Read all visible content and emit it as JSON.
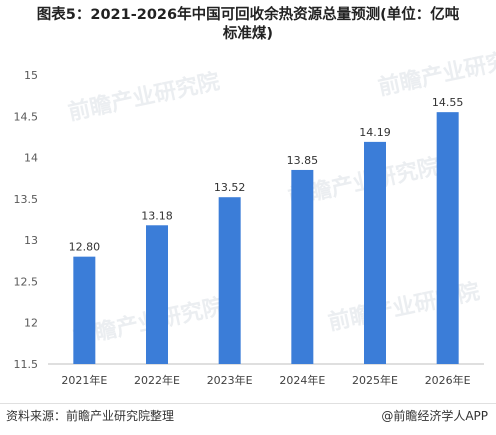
{
  "title_line1": "图表5：2021-2026年中国可回收余热资源总量预测(单位：亿吨",
  "title_line2": "标准煤)",
  "source": "资料来源：前瞻产业研究院整理",
  "brand": "@前瞻经济学人APP",
  "watermark": "前瞻产业研究院",
  "colors": {
    "bar": "#3b7dd8",
    "axis": "#bfbfbf"
  },
  "chart_data": {
    "type": "bar",
    "title": "2021-2026年中国可回收余热资源总量预测(单位：亿吨标准煤)",
    "categories": [
      "2021年E",
      "2022年E",
      "2023年E",
      "2024年E",
      "2025年E",
      "2026年E"
    ],
    "values": [
      12.8,
      13.18,
      13.52,
      13.85,
      14.19,
      14.55
    ],
    "value_labels": [
      "12.80",
      "13.18",
      "13.52",
      "13.85",
      "14.19",
      "14.55"
    ],
    "yticks": [
      "11.5",
      "12",
      "12.5",
      "13",
      "13.5",
      "14",
      "14.5",
      "15"
    ],
    "ylim": [
      11.5,
      15
    ],
    "grid": false,
    "legend": "none"
  }
}
